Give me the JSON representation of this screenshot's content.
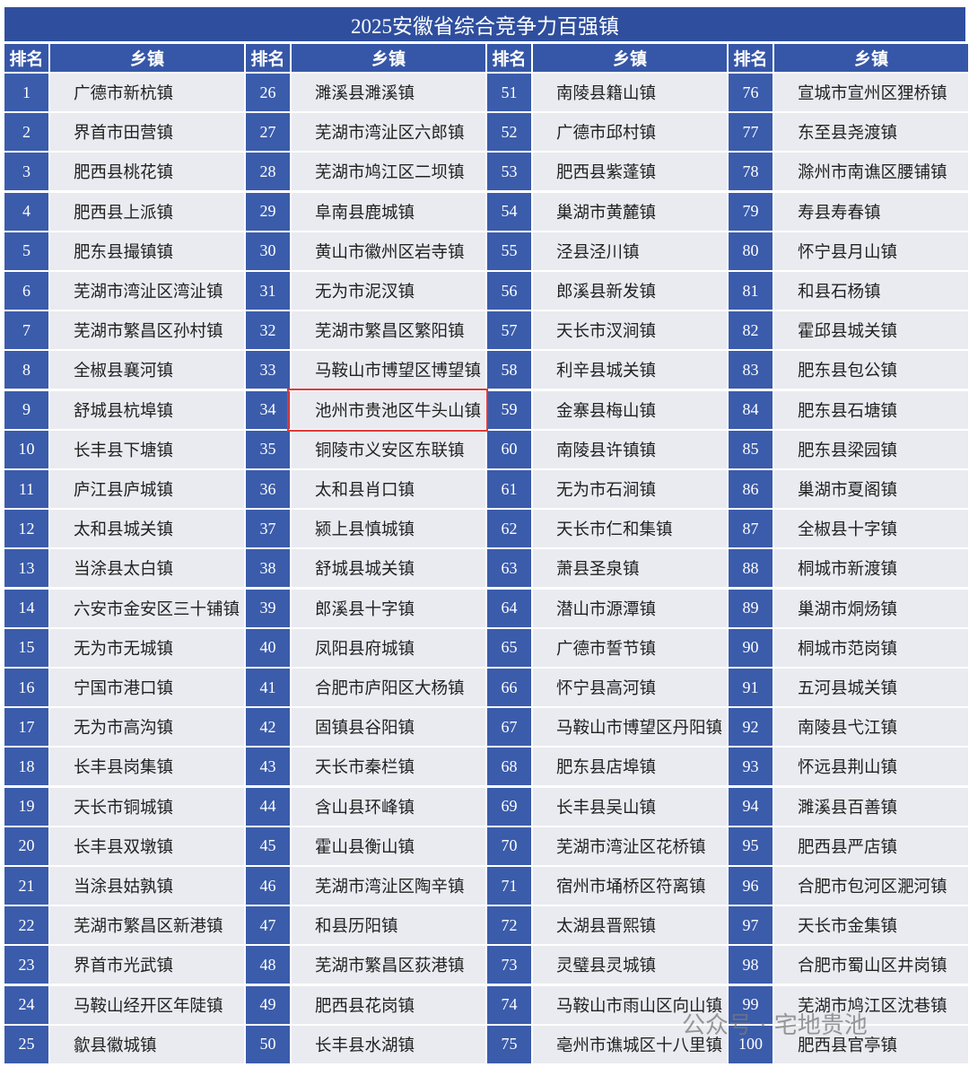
{
  "title": "2025安徽省综合竞争力百强镇",
  "table": {
    "groups": [
      {
        "rank_header": "排名",
        "name_header": "乡镇",
        "ranks": [
          1,
          2,
          3,
          4,
          5,
          6,
          7,
          8,
          9,
          10,
          11,
          12,
          13,
          14,
          15,
          16,
          17,
          18,
          19,
          20,
          21,
          22,
          23,
          24,
          25
        ],
        "names": [
          "广德市新杭镇",
          "界首市田营镇",
          "肥西县桃花镇",
          "肥西县上派镇",
          "肥东县撮镇镇",
          "芜湖市湾沚区湾沚镇",
          "芜湖市繁昌区孙村镇",
          "全椒县襄河镇",
          "舒城县杭埠镇",
          "长丰县下塘镇",
          "庐江县庐城镇",
          "太和县城关镇",
          "当涂县太白镇",
          "六安市金安区三十铺镇",
          "无为市无城镇",
          "宁国市港口镇",
          "无为市高沟镇",
          "长丰县岗集镇",
          "天长市铜城镇",
          "长丰县双墩镇",
          "当涂县姑孰镇",
          "芜湖市繁昌区新港镇",
          "界首市光武镇",
          "马鞍山经开区年陡镇",
          "歙县徽城镇"
        ]
      },
      {
        "rank_header": "排名",
        "name_header": "乡镇",
        "ranks": [
          26,
          27,
          28,
          29,
          30,
          31,
          32,
          33,
          34,
          35,
          36,
          37,
          38,
          39,
          40,
          41,
          42,
          43,
          44,
          45,
          46,
          47,
          48,
          49,
          50
        ],
        "names": [
          "濉溪县濉溪镇",
          "芜湖市湾沚区六郎镇",
          "芜湖市鸠江区二坝镇",
          "阜南县鹿城镇",
          "黄山市徽州区岩寺镇",
          "无为市泥汊镇",
          "芜湖市繁昌区繁阳镇",
          "马鞍山市博望区博望镇",
          "池州市贵池区牛头山镇",
          "铜陵市义安区东联镇",
          "太和县肖口镇",
          "颍上县慎城镇",
          "舒城县城关镇",
          "郎溪县十字镇",
          "凤阳县府城镇",
          "合肥市庐阳区大杨镇",
          "固镇县谷阳镇",
          "天长市秦栏镇",
          "含山县环峰镇",
          "霍山县衡山镇",
          "芜湖市湾沚区陶辛镇",
          "和县历阳镇",
          "芜湖市繁昌区荻港镇",
          "肥西县花岗镇",
          "长丰县水湖镇"
        ]
      },
      {
        "rank_header": "排名",
        "name_header": "乡镇",
        "ranks": [
          51,
          52,
          53,
          54,
          55,
          56,
          57,
          58,
          59,
          60,
          61,
          62,
          63,
          64,
          65,
          66,
          67,
          68,
          69,
          70,
          71,
          72,
          73,
          74,
          75
        ],
        "names": [
          "南陵县籍山镇",
          "广德市邱村镇",
          "肥西县紫蓬镇",
          "巢湖市黄麓镇",
          "泾县泾川镇",
          "郎溪县新发镇",
          "天长市汊涧镇",
          "利辛县城关镇",
          "金寨县梅山镇",
          "南陵县许镇镇",
          "无为市石涧镇",
          "天长市仁和集镇",
          "萧县圣泉镇",
          "潜山市源潭镇",
          "广德市誓节镇",
          "怀宁县高河镇",
          "马鞍山市博望区丹阳镇",
          "肥东县店埠镇",
          "长丰县吴山镇",
          "芜湖市湾沚区花桥镇",
          "宿州市埇桥区符离镇",
          "太湖县晋熙镇",
          "灵璧县灵城镇",
          "马鞍山市雨山区向山镇",
          "亳州市谯城区十八里镇"
        ]
      },
      {
        "rank_header": "排名",
        "name_header": "乡镇",
        "ranks": [
          76,
          77,
          78,
          79,
          80,
          81,
          82,
          83,
          84,
          85,
          86,
          87,
          88,
          89,
          90,
          91,
          92,
          93,
          94,
          95,
          96,
          97,
          98,
          99,
          100
        ],
        "names": [
          "宣城市宣州区狸桥镇",
          "东至县尧渡镇",
          "滁州市南谯区腰铺镇",
          "寿县寿春镇",
          "怀宁县月山镇",
          "和县石杨镇",
          "霍邱县城关镇",
          "肥东县包公镇",
          "肥东县石塘镇",
          "肥东县梁园镇",
          "巢湖市夏阁镇",
          "全椒县十字镇",
          "桐城市新渡镇",
          "巢湖市烔炀镇",
          "桐城市范岗镇",
          "五河县城关镇",
          "南陵县弋江镇",
          "怀远县荆山镇",
          "濉溪县百善镇",
          "肥西县严店镇",
          "合肥市包河区淝河镇",
          "天长市金集镇",
          "合肥市蜀山区井岗镇",
          "芜湖市鸠江区沈巷镇",
          "肥西县官亭镇"
        ]
      }
    ]
  },
  "watermark": "公众号 · 宅地贵池"
}
